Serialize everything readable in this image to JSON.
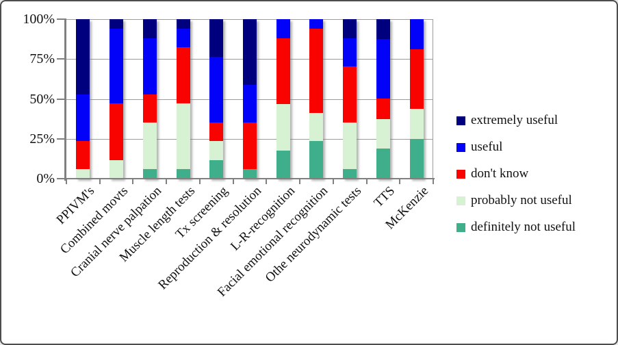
{
  "figure": {
    "background": "#ffffff",
    "border_color": "#4d4d4d",
    "grid_color": "#9c9c9c",
    "axis_color": "#808080",
    "text_color": "#111111"
  },
  "y_axis": {
    "tick_labels": [
      "100%",
      "75%",
      "50%",
      "25%",
      "0%"
    ],
    "tick_percents": [
      100,
      75,
      50,
      25,
      0
    ],
    "range": [
      0,
      100
    ]
  },
  "legend": {
    "position": "right",
    "items": [
      {
        "label": "extremely useful",
        "color": "#00007e",
        "key": "extremely-useful"
      },
      {
        "label": "useful",
        "color": "#0202f8",
        "key": "useful"
      },
      {
        "label": "don't know",
        "color": "#f90300",
        "key": "dont-know"
      },
      {
        "label": "probably not useful",
        "color": "#d7f2d2",
        "key": "probably-not-useful"
      },
      {
        "label": "definitely not useful",
        "color": "#3fae8b",
        "key": "definitely-not-useful"
      }
    ]
  },
  "chart_data": {
    "type": "bar",
    "subtype": "stacked-100-percent",
    "grid": true,
    "legend_position": "right",
    "ylim": [
      0,
      100
    ],
    "categories": [
      "PPIVM's",
      "Combined movts",
      "Cranial nerve palpation",
      "Muscle length tests",
      "Tx screening",
      "Reproduction & resolution",
      "L-R-recognition",
      "Facial emotional recognition",
      "Othe neurodynamic tests",
      "TTS",
      "McKenzie"
    ],
    "series": [
      {
        "name": "definitely not useful",
        "key": "definitely-not-useful",
        "color": "#3fae8b",
        "values": [
          0,
          0,
          5.9,
          5.9,
          11.8,
          5.9,
          17.6,
          23.5,
          5.9,
          18.8,
          25.0
        ]
      },
      {
        "name": "probably not useful",
        "key": "probably-not-useful",
        "color": "#d7f2d2",
        "values": [
          5.9,
          11.8,
          29.4,
          41.2,
          11.8,
          0,
          29.4,
          17.6,
          29.4,
          18.8,
          18.8
        ]
      },
      {
        "name": "don't know",
        "key": "dont-know",
        "color": "#f90300",
        "values": [
          17.6,
          35.3,
          17.6,
          35.3,
          11.8,
          29.4,
          41.2,
          52.9,
          35.3,
          12.5,
          37.5
        ]
      },
      {
        "name": "useful",
        "key": "useful",
        "color": "#0202f8",
        "values": [
          29.4,
          47.1,
          35.3,
          11.8,
          41.2,
          23.5,
          11.8,
          5.9,
          17.6,
          37.5,
          18.8
        ]
      },
      {
        "name": "extremely useful",
        "key": "extremely-useful",
        "color": "#00007e",
        "values": [
          47.1,
          5.9,
          11.8,
          5.9,
          23.5,
          41.2,
          0,
          0,
          11.8,
          12.5,
          0
        ]
      }
    ]
  }
}
